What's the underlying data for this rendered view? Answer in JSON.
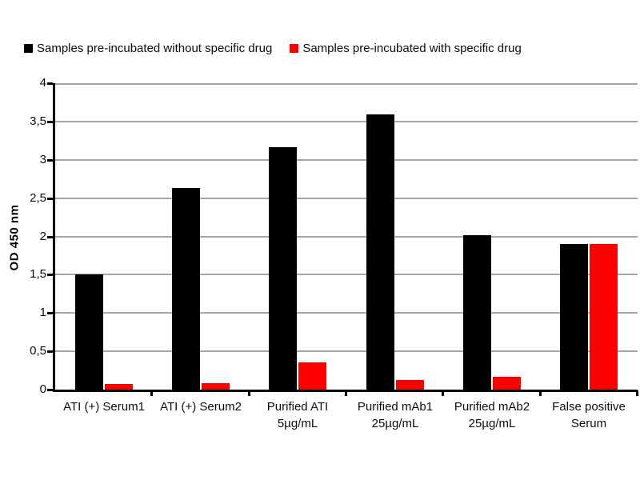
{
  "legend": {
    "items": [
      {
        "label": "Samples pre-incubated without specific drug",
        "color": "#000000",
        "slug": "without-drug"
      },
      {
        "label": "Samples pre-incubated with specific drug",
        "color": "#FF0000",
        "slug": "with-drug"
      }
    ]
  },
  "chart_data": {
    "type": "bar",
    "title": "",
    "xlabel": "",
    "ylabel": "OD 450 nm",
    "ylim": [
      0,
      4
    ],
    "ytick_step": 0.5,
    "ytick_labels": [
      "0",
      "0,5",
      "1",
      "1,5",
      "2",
      "2,5",
      "3",
      "3,5",
      "4"
    ],
    "grid": true,
    "legend_position": "top",
    "categories": [
      {
        "lines": [
          "ATI (+) Serum1"
        ],
        "slug": "ati-serum1"
      },
      {
        "lines": [
          "ATI (+) Serum2"
        ],
        "slug": "ati-serum2"
      },
      {
        "lines": [
          "Purified ATI",
          "5µg/mL"
        ],
        "slug": "purified-ati-5ug-ml"
      },
      {
        "lines": [
          "Purified mAb1",
          "25µg/mL"
        ],
        "slug": "purified-mab1-25ug-ml"
      },
      {
        "lines": [
          "Purified mAb2",
          "25µg/mL"
        ],
        "slug": "purified-mab2-25ug-ml"
      },
      {
        "lines": [
          "False positive",
          "Serum"
        ],
        "slug": "false-positive-serum"
      }
    ],
    "series": [
      {
        "name": "Samples pre-incubated without specific drug",
        "slug": "without-drug",
        "color": "#000000",
        "values": [
          1.5,
          2.63,
          3.16,
          3.59,
          2.02,
          1.9
        ]
      },
      {
        "name": "Samples pre-incubated with specific drug",
        "slug": "with-drug",
        "color": "#FF0000",
        "values": [
          0.07,
          0.08,
          0.35,
          0.13,
          0.17,
          1.9
        ]
      }
    ],
    "colors": {
      "gridline": "#A6A6A6",
      "axis": "#000000"
    }
  }
}
